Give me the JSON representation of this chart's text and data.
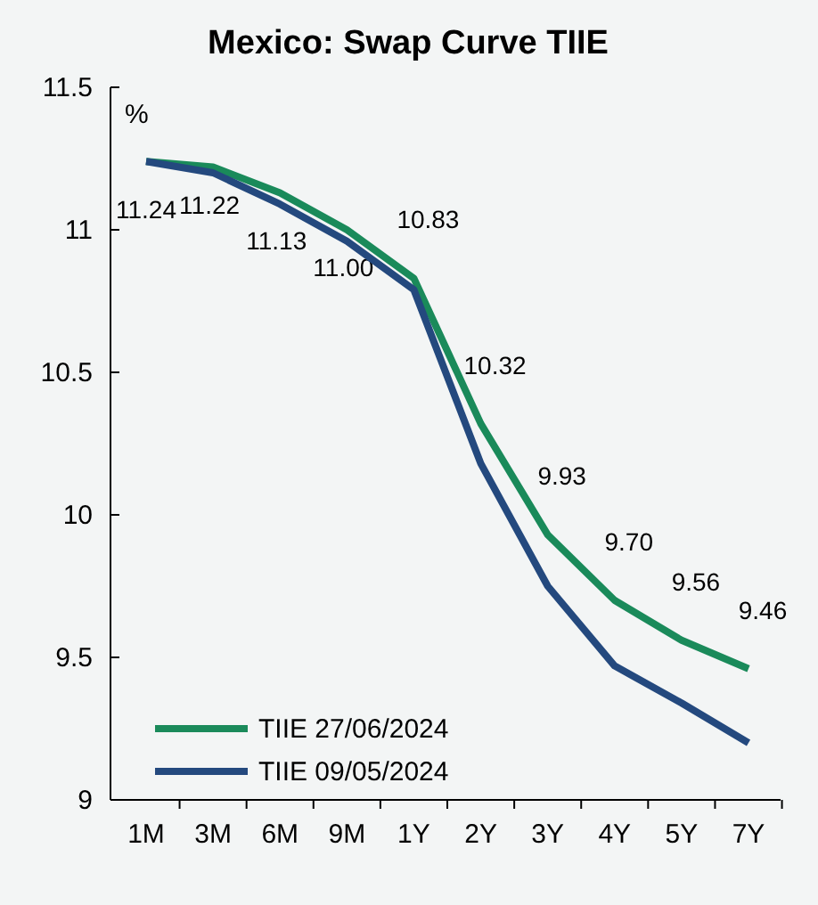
{
  "chart_data": {
    "type": "line",
    "title": "Mexico: Swap Curve TIIE",
    "ylabel": "%",
    "categories": [
      "1M",
      "3M",
      "6M",
      "9M",
      "1Y",
      "2Y",
      "3Y",
      "4Y",
      "5Y",
      "7Y"
    ],
    "series": [
      {
        "name": "TIIE 27/06/2024",
        "color": "#1a8a5a",
        "values": [
          11.24,
          11.22,
          11.13,
          11.0,
          10.83,
          10.32,
          9.93,
          9.7,
          9.56,
          9.46
        ],
        "value_labels": [
          "11.24",
          "11.22",
          "11.13",
          "11.00",
          "10.83",
          "10.32",
          "9.93",
          "9.70",
          "9.56",
          "9.46"
        ]
      },
      {
        "name": "TIIE 09/05/2024",
        "color": "#24497e",
        "values": [
          11.24,
          11.2,
          11.09,
          10.96,
          10.79,
          10.18,
          9.75,
          9.47,
          9.34,
          9.2
        ]
      }
    ],
    "ylim": [
      9,
      11.5
    ],
    "yticks": [
      9,
      9.5,
      10,
      10.5,
      11,
      11.5
    ],
    "grid": false,
    "legend": "bottom left",
    "marker": "none",
    "line_style": "solid"
  }
}
